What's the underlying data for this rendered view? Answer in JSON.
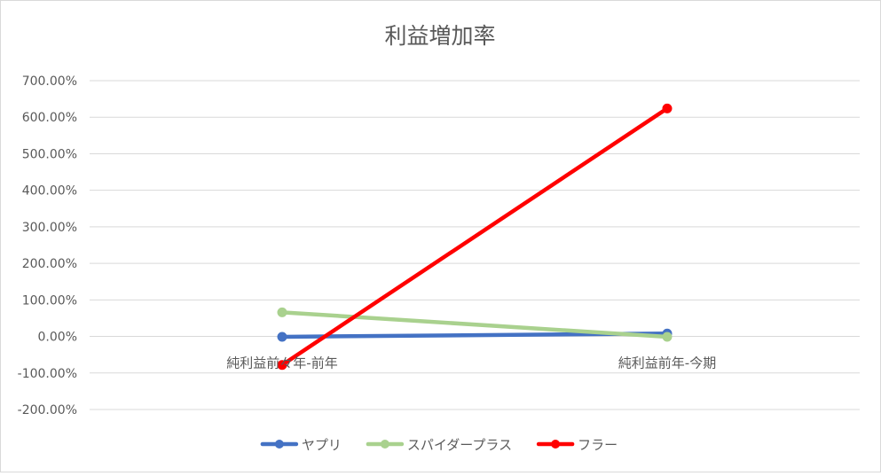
{
  "chart_data": {
    "type": "line",
    "title": "利益増加率",
    "xlabel": "",
    "ylabel": "",
    "categories": [
      "純利益前々年-前年",
      "純利益前年-今期"
    ],
    "ylim": [
      -200,
      700
    ],
    "ytick_step": 100,
    "ytick_labels": [
      "700.00%",
      "600.00%",
      "500.00%",
      "400.00%",
      "300.00%",
      "200.00%",
      "100.00%",
      "0.00%",
      "-100.00%",
      "-200.00%"
    ],
    "grid": true,
    "legend_position": "bottom",
    "series": [
      {
        "name": "ヤプリ",
        "color": "#4472c4",
        "values": [
          -1,
          8
        ]
      },
      {
        "name": "スパイダープラス",
        "color": "#a9d18e",
        "values": [
          66,
          -1
        ]
      },
      {
        "name": "フラー",
        "color": "#ff0000",
        "values": [
          -78,
          624
        ]
      }
    ]
  }
}
